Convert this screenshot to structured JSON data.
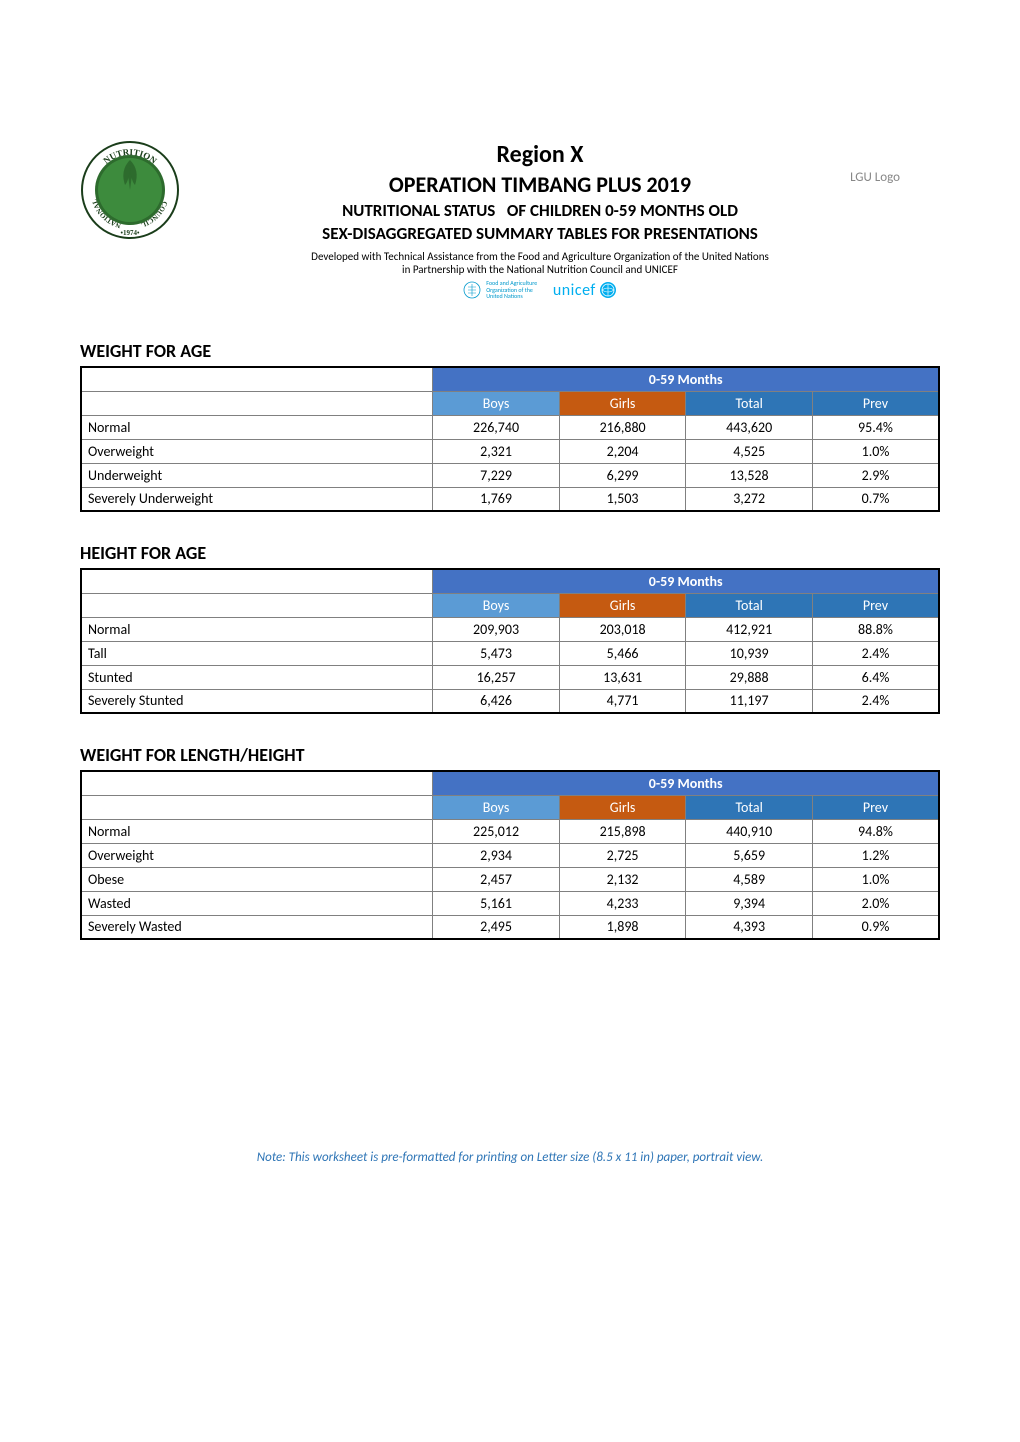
{
  "header": {
    "region_label": "Region",
    "region_value": "X",
    "operation_label": "OPERATION TIMBANG PLUS",
    "operation_year": "2019",
    "status_line_a": "NUTRITIONAL STATUS",
    "status_line_b": "OF CHILDREN 0-59 MONTHS OLD",
    "sex_line": "SEX-DISAGGREGATED SUMMARY TABLES FOR PRESENTATIONS",
    "developed_line": "Developed with Technical Assistance from the Food and Agriculture Organization of the United Nations",
    "partnership_line": "in Partnership with the National Nutrition Council and UNICEF",
    "lgu_placeholder": "LGU Logo",
    "fao_text_1": "Food and Agriculture",
    "fao_text_2": "Organization of the",
    "fao_text_3": "United Nations",
    "unicef_label": "unicef"
  },
  "logo": {
    "top_arc_text": "NUTRITION",
    "left_arc_text": "NATIONAL",
    "right_arc_text": "COUNCIL",
    "year_text": "•1974•",
    "outer_color": "#1a3d1a",
    "inner_color": "#2d6b2d"
  },
  "table_common": {
    "months_header": "0-59 Months",
    "col_boys": "Boys",
    "col_girls": "Girls",
    "col_total": "Total",
    "col_prev": "Prev",
    "header_bg": "#4472c4",
    "boys_bg": "#5b9bd5",
    "girls_bg": "#c55a11",
    "total_bg": "#2e75b6",
    "prev_bg": "#2e75b6",
    "border_color": "#808080",
    "outer_border_color": "#000000",
    "text_color": "#ffffff"
  },
  "sections": [
    {
      "title": "WEIGHT FOR AGE",
      "rows": [
        {
          "label": "Normal",
          "boys": "226,740",
          "girls": "216,880",
          "total": "443,620",
          "prev": "95.4%"
        },
        {
          "label": "Overweight",
          "boys": "2,321",
          "girls": "2,204",
          "total": "4,525",
          "prev": "1.0%"
        },
        {
          "label": "Underweight",
          "boys": "7,229",
          "girls": "6,299",
          "total": "13,528",
          "prev": "2.9%"
        },
        {
          "label": "Severely Underweight",
          "boys": "1,769",
          "girls": "1,503",
          "total": "3,272",
          "prev": "0.7%"
        }
      ]
    },
    {
      "title": "HEIGHT FOR AGE",
      "rows": [
        {
          "label": "Normal",
          "boys": "209,903",
          "girls": "203,018",
          "total": "412,921",
          "prev": "88.8%"
        },
        {
          "label": "Tall",
          "boys": "5,473",
          "girls": "5,466",
          "total": "10,939",
          "prev": "2.4%"
        },
        {
          "label": "Stunted",
          "boys": "16,257",
          "girls": "13,631",
          "total": "29,888",
          "prev": "6.4%"
        },
        {
          "label": "Severely Stunted",
          "boys": "6,426",
          "girls": "4,771",
          "total": "11,197",
          "prev": "2.4%"
        }
      ]
    },
    {
      "title": "WEIGHT FOR LENGTH/HEIGHT",
      "rows": [
        {
          "label": "Normal",
          "boys": "225,012",
          "girls": "215,898",
          "total": "440,910",
          "prev": "94.8%"
        },
        {
          "label": "Overweight",
          "boys": "2,934",
          "girls": "2,725",
          "total": "5,659",
          "prev": "1.2%"
        },
        {
          "label": "Obese",
          "boys": "2,457",
          "girls": "2,132",
          "total": "4,589",
          "prev": "1.0%"
        },
        {
          "label": "Wasted",
          "boys": "5,161",
          "girls": "4,233",
          "total": "9,394",
          "prev": "2.0%"
        },
        {
          "label": "Severely Wasted",
          "boys": "2,495",
          "girls": "1,898",
          "total": "4,393",
          "prev": "0.9%"
        }
      ]
    }
  ],
  "footnote": "Note: This worksheet is pre-formatted for printing on Letter size (8.5 x 11 in) paper, portrait view.",
  "footnote_color": "#2e75b6"
}
